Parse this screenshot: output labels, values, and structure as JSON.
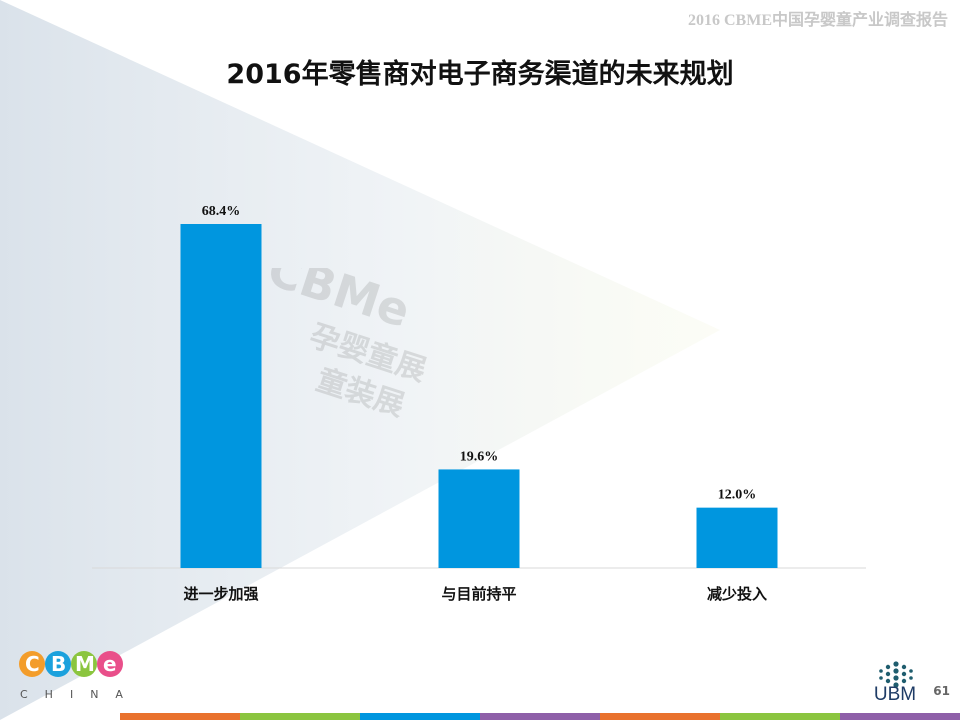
{
  "header": {
    "report_title": "2016 CBME中国孕婴童产业调查报告"
  },
  "page_number": "61",
  "logos": {
    "cbme_sub": "CHINA",
    "ubm_text": "UBM"
  },
  "colors": {
    "bar": "#0096df",
    "footer": [
      "#e9722e",
      "#8bc53f",
      "#0096df",
      "#8e5fa8",
      "#e9722e",
      "#8bc53f",
      "#8e5fa8"
    ]
  },
  "chart_data": {
    "type": "bar",
    "title": "2016年零售商对电子商务渠道的未来规划",
    "categories": [
      "进一步加强",
      "与目前持平",
      "减少投入"
    ],
    "values": [
      68.4,
      19.6,
      12.0
    ],
    "value_labels": [
      "68.4%",
      "19.6%",
      "12.0%"
    ],
    "unit": "%",
    "xlabel": "",
    "ylabel": "",
    "grid": false,
    "legend": "none"
  }
}
